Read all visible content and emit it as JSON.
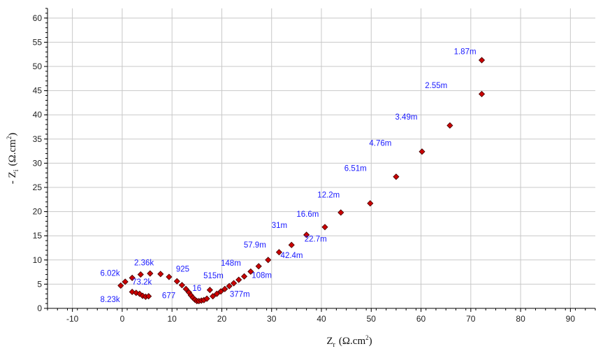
{
  "chart_data": {
    "type": "scatter",
    "title": "",
    "xlabel": "Z",
    "xlabel_sub": "r",
    "xlabel_unit": "(Ω.cm",
    "xlabel_unit_sup": "2",
    "xlabel_unit_close": ")",
    "ylabel": "- Z",
    "ylabel_sub": "i",
    "ylabel_unit": "(Ω.cm",
    "ylabel_unit_sup": "2",
    "ylabel_unit_close": ")",
    "xlim": [
      -15,
      95
    ],
    "ylim": [
      0,
      62
    ],
    "xticks": [
      -10,
      0,
      10,
      20,
      30,
      40,
      50,
      60,
      70,
      80,
      90
    ],
    "yticks": [
      0,
      5,
      10,
      15,
      20,
      25,
      30,
      35,
      40,
      45,
      50,
      55,
      60
    ],
    "grid": true,
    "marker_color": "#cc0000",
    "annotation_color": "#1a1aff",
    "points": [
      [
        -0.3,
        4.7
      ],
      [
        0.6,
        5.5
      ],
      [
        2.0,
        6.3
      ],
      [
        3.7,
        7.0
      ],
      [
        5.6,
        7.2
      ],
      [
        7.7,
        7.1
      ],
      [
        9.4,
        6.5
      ],
      [
        11.0,
        5.6
      ],
      [
        12.0,
        4.8
      ],
      [
        12.8,
        4.0
      ],
      [
        13.4,
        3.3
      ],
      [
        13.8,
        2.7
      ],
      [
        14.2,
        2.2
      ],
      [
        14.6,
        1.8
      ],
      [
        15.0,
        1.5
      ],
      [
        15.4,
        1.5
      ],
      [
        15.9,
        1.6
      ],
      [
        16.4,
        1.7
      ],
      [
        17.0,
        2.0
      ],
      [
        17.6,
        3.8
      ],
      [
        18.2,
        2.5
      ],
      [
        19.0,
        3.0
      ],
      [
        19.8,
        3.5
      ],
      [
        20.6,
        4.0
      ],
      [
        21.5,
        4.6
      ],
      [
        22.4,
        5.2
      ],
      [
        23.4,
        5.9
      ],
      [
        24.5,
        6.6
      ],
      [
        25.8,
        7.6
      ],
      [
        27.4,
        8.7
      ],
      [
        29.3,
        10.0
      ],
      [
        31.5,
        11.6
      ],
      [
        34.0,
        13.1
      ],
      [
        37.0,
        15.2
      ],
      [
        40.7,
        16.8
      ],
      [
        43.9,
        19.8
      ],
      [
        49.8,
        21.7
      ],
      [
        55.0,
        27.2
      ],
      [
        60.2,
        32.4
      ],
      [
        65.8,
        37.8
      ],
      [
        72.2,
        44.3
      ],
      [
        2.0,
        3.4
      ],
      [
        2.8,
        3.2
      ],
      [
        3.5,
        3.0
      ],
      [
        4.1,
        2.6
      ],
      [
        4.7,
        2.4
      ],
      [
        5.3,
        2.5
      ]
    ],
    "extra_points": [
      [
        72.2,
        51.3
      ]
    ],
    "annotations": [
      {
        "text": "1.87m",
        "x": 66.6,
        "y": 52.5
      },
      {
        "text": "2.55m",
        "x": 60.8,
        "y": 45.5
      },
      {
        "text": "3.49m",
        "x": 54.8,
        "y": 39.0
      },
      {
        "text": "4.76m",
        "x": 49.6,
        "y": 33.6
      },
      {
        "text": "6.51m",
        "x": 44.6,
        "y": 28.4
      },
      {
        "text": "12.2m",
        "x": 39.2,
        "y": 22.9
      },
      {
        "text": "16.6m",
        "x": 35.0,
        "y": 18.9
      },
      {
        "text": "31m",
        "x": 30.0,
        "y": 16.6
      },
      {
        "text": "22.7m",
        "x": 36.6,
        "y": 13.8
      },
      {
        "text": "57.9m",
        "x": 24.4,
        "y": 12.6
      },
      {
        "text": "42.4m",
        "x": 31.8,
        "y": 10.4
      },
      {
        "text": "148m",
        "x": 19.8,
        "y": 8.8
      },
      {
        "text": "108m",
        "x": 26.0,
        "y": 6.3
      },
      {
        "text": "2.36k",
        "x": 2.4,
        "y": 8.9
      },
      {
        "text": "925",
        "x": 10.8,
        "y": 7.6
      },
      {
        "text": "6.02k",
        "x": -4.4,
        "y": 6.7
      },
      {
        "text": "515m",
        "x": 16.3,
        "y": 6.2
      },
      {
        "text": "73.2k",
        "x": 2.0,
        "y": 4.9
      },
      {
        "text": "16",
        "x": 14.1,
        "y": 3.6
      },
      {
        "text": "677",
        "x": 8.0,
        "y": 2.1
      },
      {
        "text": "377m",
        "x": 21.6,
        "y": 2.4
      },
      {
        "text": "8.23k",
        "x": -4.4,
        "y": 1.3
      }
    ]
  }
}
